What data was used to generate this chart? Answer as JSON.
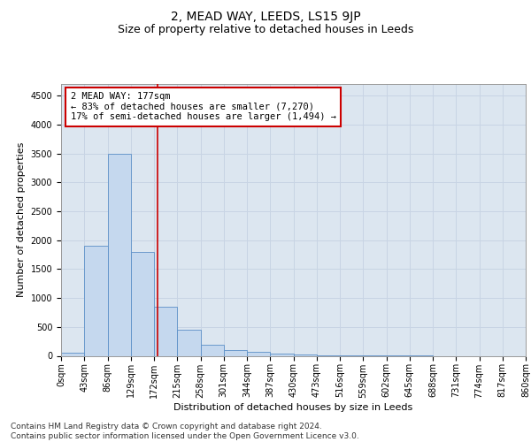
{
  "title": "2, MEAD WAY, LEEDS, LS15 9JP",
  "subtitle": "Size of property relative to detached houses in Leeds",
  "xlabel": "Distribution of detached houses by size in Leeds",
  "ylabel": "Number of detached properties",
  "bin_labels": [
    "0sqm",
    "43sqm",
    "86sqm",
    "129sqm",
    "172sqm",
    "215sqm",
    "258sqm",
    "301sqm",
    "344sqm",
    "387sqm",
    "430sqm",
    "473sqm",
    "516sqm",
    "559sqm",
    "602sqm",
    "645sqm",
    "688sqm",
    "731sqm",
    "774sqm",
    "817sqm",
    "860sqm"
  ],
  "bar_values": [
    50,
    1900,
    3500,
    1800,
    850,
    450,
    190,
    100,
    70,
    40,
    20,
    10,
    5,
    3,
    2,
    1,
    0,
    0,
    0,
    0
  ],
  "bar_color": "#c5d8ee",
  "bar_edge_color": "#5b8fc7",
  "grid_color": "#c8d4e4",
  "background_color": "#dce6f0",
  "vline_x": 4.15,
  "vline_color": "#cc0000",
  "annotation_text": "2 MEAD WAY: 177sqm\n← 83% of detached houses are smaller (7,270)\n17% of semi-detached houses are larger (1,494) →",
  "annotation_box_color": "#ffffff",
  "annotation_box_edge": "#cc0000",
  "ylim": [
    0,
    4700
  ],
  "yticks": [
    0,
    500,
    1000,
    1500,
    2000,
    2500,
    3000,
    3500,
    4000,
    4500
  ],
  "footer": "Contains HM Land Registry data © Crown copyright and database right 2024.\nContains public sector information licensed under the Open Government Licence v3.0.",
  "title_fontsize": 10,
  "subtitle_fontsize": 9,
  "axis_label_fontsize": 8,
  "tick_fontsize": 7,
  "annotation_fontsize": 7.5,
  "footer_fontsize": 6.5
}
